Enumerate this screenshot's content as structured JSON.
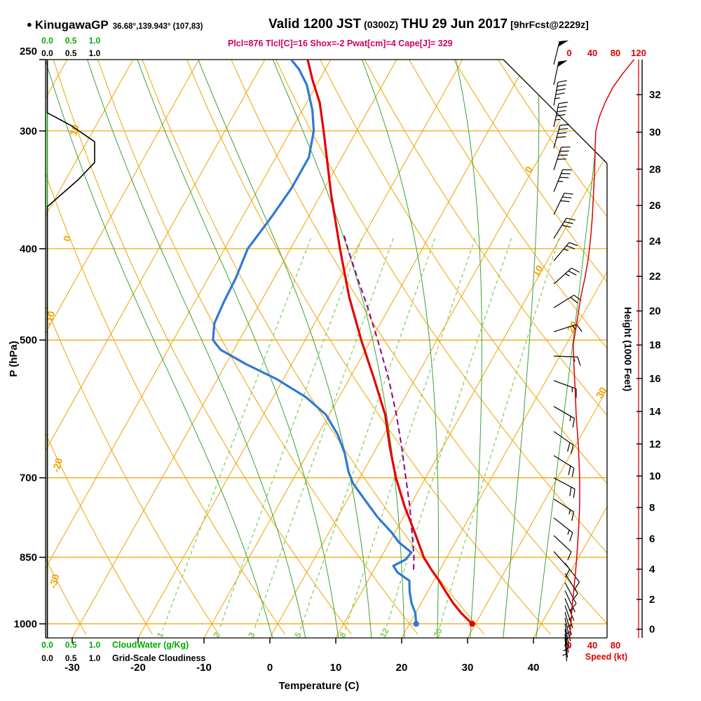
{
  "header": {
    "bullet": "●",
    "station": "KinugawaGP",
    "coords": "36.68°,139.943° (107,83)",
    "valid": {
      "prefix": "Valid 1200 JST",
      "utc": "(0300Z)",
      "date": "THU 29 Jun 2017",
      "fcst": "[9hrFcst@2229z]"
    },
    "indices": "Plcl=876 Tlcl[C]=16 Shox=-2 Pwat[cm]=4 Cape[J]= 329"
  },
  "axes": {
    "pressure": {
      "label": "P (hPa)",
      "ticks": [
        250,
        300,
        400,
        500,
        700,
        850,
        1000
      ],
      "gridlines": [
        300,
        400,
        500,
        700,
        850,
        1000
      ]
    },
    "temperature": {
      "label": "Temperature (C)",
      "ticks": [
        -30,
        -20,
        -10,
        0,
        10,
        20,
        30,
        40
      ]
    },
    "height": {
      "label": "Height (1000 Feet)",
      "ticks": [
        0,
        2,
        4,
        6,
        8,
        10,
        12,
        14,
        16,
        18,
        20,
        22,
        24,
        26,
        28,
        30,
        32
      ]
    },
    "speed": {
      "label": "Speed (kt)",
      "ticks_top": [
        0,
        40,
        80,
        120
      ],
      "ticks_bottom": [
        0,
        40,
        80
      ]
    },
    "cloud": {
      "scale_labels": [
        "0.0",
        "0.5",
        "1.0"
      ],
      "cloudwater_label": "CloudWater (g/Kg)",
      "cloudiness_label": "Grid-Scale Cloudiness"
    }
  },
  "colors": {
    "grid": "#f0a202",
    "mixing": "#7ccb55",
    "moist": "#3aa233",
    "temperature": "#e60000",
    "dewpoint": "#2d7ad2",
    "parcel": "#8b008b",
    "speed": "#dd0000",
    "cloudwater": "#00aa00",
    "cloudiness": "#000000",
    "indices": "#cc0066",
    "barb": "#000000"
  },
  "chart_data": {
    "type": "skewt",
    "pressure_range": [
      252,
      1035
    ],
    "isotherm_step_c": 10,
    "dry_adiabat_step_c": 10,
    "moist_adiabat_values_c": [
      0,
      5,
      10,
      15,
      20,
      25,
      30,
      35,
      40
    ],
    "mixing_ratio_lines_gkg": [
      1,
      2,
      3,
      5,
      8,
      12,
      20
    ],
    "isotherm_labels": [
      {
        "t": 0,
        "p": 331
      },
      {
        "t": 10,
        "p": 424
      },
      {
        "t": 20,
        "p": 486
      },
      {
        "t": 30,
        "p": 571
      }
    ],
    "dry_adiabat_labels": [
      {
        "theta": 10,
        "p": 300
      },
      {
        "theta": 0,
        "p": 391
      },
      {
        "theta": -10,
        "p": 475
      },
      {
        "theta": -20,
        "p": 680
      },
      {
        "theta": -30,
        "p": 903
      }
    ],
    "temperature_profile": [
      [
        1000,
        29.5
      ],
      [
        975,
        27
      ],
      [
        950,
        24.8
      ],
      [
        925,
        22.8
      ],
      [
        900,
        20.8
      ],
      [
        875,
        18.6
      ],
      [
        850,
        16.5
      ],
      [
        800,
        13
      ],
      [
        750,
        9.2
      ],
      [
        700,
        5.5
      ],
      [
        650,
        2
      ],
      [
        600,
        -1.5
      ],
      [
        550,
        -6.2
      ],
      [
        500,
        -11.5
      ],
      [
        450,
        -17
      ],
      [
        400,
        -22.5
      ],
      [
        350,
        -28.5
      ],
      [
        300,
        -35
      ],
      [
        280,
        -38
      ],
      [
        265,
        -41
      ],
      [
        252,
        -43.5
      ]
    ],
    "dewpoint_profile": [
      [
        1000,
        21
      ],
      [
        975,
        20
      ],
      [
        950,
        18.5
      ],
      [
        925,
        17.3
      ],
      [
        900,
        16.3
      ],
      [
        882,
        13.8
      ],
      [
        868,
        12.6
      ],
      [
        855,
        13.9
      ],
      [
        840,
        14.2
      ],
      [
        820,
        11.5
      ],
      [
        800,
        9.5
      ],
      [
        770,
        6
      ],
      [
        740,
        2.8
      ],
      [
        710,
        -0.5
      ],
      [
        690,
        -2.2
      ],
      [
        660,
        -4.3
      ],
      [
        630,
        -7
      ],
      [
        600,
        -10.5
      ],
      [
        575,
        -15
      ],
      [
        550,
        -21
      ],
      [
        530,
        -27
      ],
      [
        512,
        -32
      ],
      [
        500,
        -34
      ],
      [
        480,
        -35.2
      ],
      [
        455,
        -35.6
      ],
      [
        430,
        -35.8
      ],
      [
        400,
        -36.5
      ],
      [
        370,
        -35.6
      ],
      [
        345,
        -35
      ],
      [
        320,
        -35
      ],
      [
        300,
        -36.5
      ],
      [
        285,
        -38.5
      ],
      [
        268,
        -41.5
      ],
      [
        258,
        -44
      ],
      [
        252,
        -46
      ]
    ],
    "parcel_profile": [
      [
        876,
        16
      ],
      [
        850,
        15
      ],
      [
        800,
        12.6
      ],
      [
        750,
        10
      ],
      [
        700,
        7
      ],
      [
        650,
        3.8
      ],
      [
        600,
        0.2
      ],
      [
        550,
        -4
      ],
      [
        500,
        -9
      ],
      [
        460,
        -13.5
      ],
      [
        430,
        -17.3
      ],
      [
        400,
        -21.3
      ],
      [
        385,
        -23.3
      ]
    ],
    "surface_markers": [
      {
        "type": "temperature",
        "pressure": 1000,
        "value": 29.5
      },
      {
        "type": "dewpoint",
        "pressure": 1000,
        "value": 21
      }
    ],
    "cloudiness_profile": [
      [
        1035,
        0
      ],
      [
        361,
        0
      ],
      [
        338,
        0.65
      ],
      [
        324,
        1
      ],
      [
        308,
        1
      ],
      [
        296,
        0.5
      ],
      [
        287,
        0
      ],
      [
        252,
        0
      ]
    ],
    "cloudwater_profile": [
      [
        1035,
        0
      ],
      [
        252,
        0
      ]
    ],
    "wind_barbs": [
      {
        "p": 255,
        "dir": 14,
        "spd": 50
      },
      {
        "p": 268,
        "dir": 12,
        "spd": 50
      },
      {
        "p": 282,
        "dir": 10,
        "spd": 45
      },
      {
        "p": 297,
        "dir": 12,
        "spd": 45
      },
      {
        "p": 313,
        "dir": 15,
        "spd": 40
      },
      {
        "p": 330,
        "dir": 18,
        "spd": 40
      },
      {
        "p": 348,
        "dir": 22,
        "spd": 35
      },
      {
        "p": 368,
        "dir": 26,
        "spd": 30
      },
      {
        "p": 390,
        "dir": 32,
        "spd": 30
      },
      {
        "p": 412,
        "dir": 40,
        "spd": 25
      },
      {
        "p": 436,
        "dir": 48,
        "spd": 25
      },
      {
        "p": 462,
        "dir": 58,
        "spd": 20
      },
      {
        "p": 490,
        "dir": 72,
        "spd": 15
      },
      {
        "p": 520,
        "dir": 92,
        "spd": 15
      },
      {
        "p": 552,
        "dir": 110,
        "spd": 15
      },
      {
        "p": 588,
        "dir": 120,
        "spd": 15
      },
      {
        "p": 625,
        "dir": 125,
        "spd": 20
      },
      {
        "p": 663,
        "dir": 122,
        "spd": 20
      },
      {
        "p": 700,
        "dir": 118,
        "spd": 20
      },
      {
        "p": 737,
        "dir": 123,
        "spd": 15
      },
      {
        "p": 772,
        "dir": 128,
        "spd": 15
      },
      {
        "p": 806,
        "dir": 133,
        "spd": 12
      },
      {
        "p": 838,
        "dir": 138,
        "spd": 10
      },
      {
        "p": 862,
        "dir": 143,
        "spd": 10
      },
      {
        "p": 884,
        "dir": 148,
        "spd": 8
      },
      {
        "p": 904,
        "dir": 152,
        "spd": 8
      },
      {
        "p": 922,
        "dir": 155,
        "spd": 6
      },
      {
        "p": 940,
        "dir": 158,
        "spd": 5
      },
      {
        "p": 956,
        "dir": 161,
        "spd": 5
      },
      {
        "p": 972,
        "dir": 164,
        "spd": 5
      },
      {
        "p": 986,
        "dir": 167,
        "spd": 4
      },
      {
        "p": 1000,
        "dir": 170,
        "spd": 4
      },
      {
        "p": 1013,
        "dir": 172,
        "spd": 3
      },
      {
        "p": 1025,
        "dir": 174,
        "spd": 3
      },
      {
        "p": 1034,
        "dir": 176,
        "spd": 2
      }
    ],
    "speed_profile_kt": [
      [
        1035,
        1
      ],
      [
        1000,
        3
      ],
      [
        960,
        5
      ],
      [
        920,
        8
      ],
      [
        880,
        11
      ],
      [
        850,
        13
      ],
      [
        800,
        16
      ],
      [
        750,
        18
      ],
      [
        700,
        18
      ],
      [
        650,
        16
      ],
      [
        600,
        12
      ],
      [
        560,
        10
      ],
      [
        530,
        8
      ],
      [
        505,
        7
      ],
      [
        480,
        13
      ],
      [
        450,
        20
      ],
      [
        430,
        27
      ],
      [
        410,
        33
      ],
      [
        390,
        37
      ],
      [
        370,
        40
      ],
      [
        350,
        42
      ],
      [
        330,
        44
      ],
      [
        310,
        45
      ],
      [
        300,
        46
      ],
      [
        290,
        52
      ],
      [
        280,
        62
      ],
      [
        270,
        75
      ],
      [
        262,
        90
      ],
      [
        256,
        103
      ],
      [
        252,
        112
      ]
    ]
  }
}
